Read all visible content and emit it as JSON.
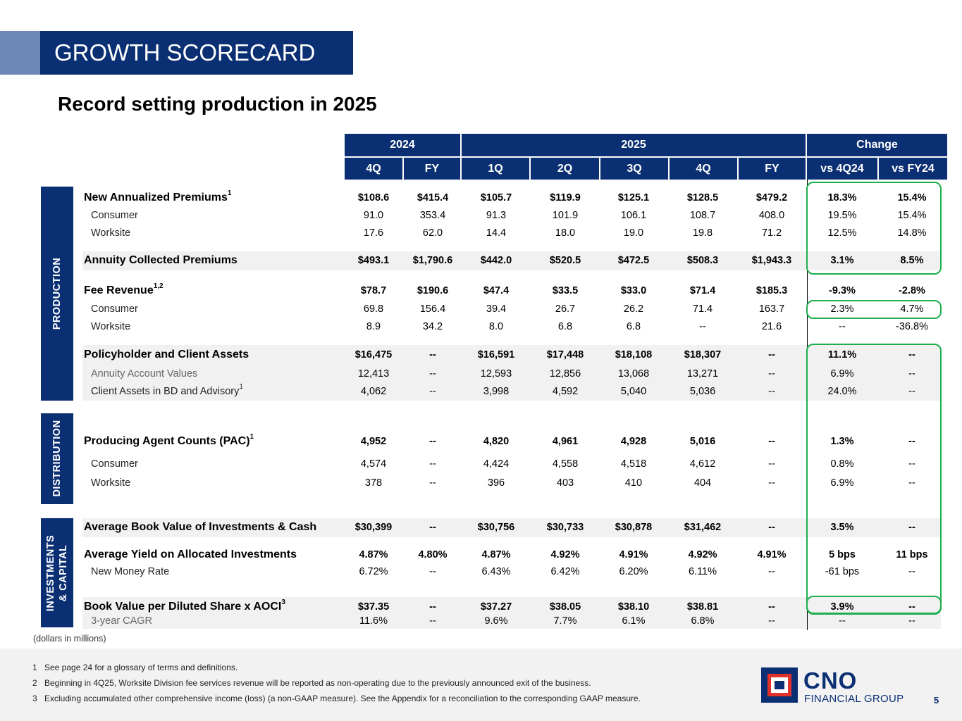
{
  "header": {
    "section_title": "GROWTH SCORECARD",
    "subtitle": "Record setting production in 2025"
  },
  "table": {
    "year_headers": [
      "2024",
      "2025",
      "Change"
    ],
    "column_headers": [
      "4Q",
      "FY",
      "1Q",
      "2Q",
      "3Q",
      "4Q",
      "FY",
      "vs 4Q24",
      "vs FY24"
    ],
    "sections": [
      "PRODUCTION",
      "DISTRIBUTION",
      "INVESTMENTS & CAPITAL"
    ],
    "sections_lines": {
      "investments_line1": "INVESTMENTS",
      "investments_line2": "& CAPITAL"
    },
    "rows": [
      {
        "label": "New Annualized Premiums",
        "sup": "1",
        "values": [
          "$108.6",
          "$415.4",
          "$105.7",
          "$119.9",
          "$125.1",
          "$128.5",
          "$479.2",
          "18.3%",
          "15.4%"
        ]
      },
      {
        "label": "Consumer",
        "sup": "",
        "values": [
          "91.0",
          "353.4",
          "91.3",
          "101.9",
          "106.1",
          "108.7",
          "408.0",
          "19.5%",
          "15.4%"
        ]
      },
      {
        "label": "Worksite",
        "sup": "",
        "values": [
          "17.6",
          "62.0",
          "14.4",
          "18.0",
          "19.0",
          "19.8",
          "71.2",
          "12.5%",
          "14.8%"
        ]
      },
      {
        "label": "Annuity Collected Premiums",
        "sup": "",
        "values": [
          "$493.1",
          "$1,790.6",
          "$442.0",
          "$520.5",
          "$472.5",
          "$508.3",
          "$1,943.3",
          "3.1%",
          "8.5%"
        ]
      },
      {
        "label": "Fee Revenue",
        "sup": "1,2",
        "values": [
          "$78.7",
          "$190.6",
          "$47.4",
          "$33.5",
          "$33.0",
          "$71.4",
          "$185.3",
          "-9.3%",
          "-2.8%"
        ]
      },
      {
        "label": "Consumer",
        "sup": "",
        "values": [
          "69.8",
          "156.4",
          "39.4",
          "26.7",
          "26.2",
          "71.4",
          "163.7",
          "2.3%",
          "4.7%"
        ]
      },
      {
        "label": "Worksite",
        "sup": "",
        "values": [
          "8.9",
          "34.2",
          "8.0",
          "6.8",
          "6.8",
          "--",
          "21.6",
          "--",
          "-36.8%"
        ]
      },
      {
        "label": "Policyholder and Client Assets",
        "sup": "",
        "values": [
          "$16,475",
          "--",
          "$16,591",
          "$17,448",
          "$18,108",
          "$18,307",
          "--",
          "11.1%",
          "--"
        ]
      },
      {
        "label": "Annuity Account Values",
        "sup": "",
        "values": [
          "12,413",
          "--",
          "12,593",
          "12,856",
          "13,068",
          "13,271",
          "--",
          "6.9%",
          "--"
        ]
      },
      {
        "label": "Client Assets in BD and Advisory",
        "sup": "1",
        "values": [
          "4,062",
          "--",
          "3,998",
          "4,592",
          "5,040",
          "5,036",
          "--",
          "24.0%",
          "--"
        ]
      },
      {
        "label": "Producing Agent Counts (PAC)",
        "sup": "1",
        "values": [
          "4,952",
          "--",
          "4,820",
          "4,961",
          "4,928",
          "5,016",
          "--",
          "1.3%",
          "--"
        ]
      },
      {
        "label": "Consumer",
        "sup": "",
        "values": [
          "4,574",
          "--",
          "4,424",
          "4,558",
          "4,518",
          "4,612",
          "--",
          "0.8%",
          "--"
        ]
      },
      {
        "label": "Worksite",
        "sup": "",
        "values": [
          "378",
          "--",
          "396",
          "403",
          "410",
          "404",
          "--",
          "6.9%",
          "--"
        ]
      },
      {
        "label": "Average Book Value of Investments & Cash",
        "sup": "",
        "values": [
          "$30,399",
          "--",
          "$30,756",
          "$30,733",
          "$30,878",
          "$31,462",
          "--",
          "3.5%",
          "--"
        ]
      },
      {
        "label": "Average Yield on Allocated Investments",
        "sup": "",
        "values": [
          "4.87%",
          "4.80%",
          "4.87%",
          "4.92%",
          "4.91%",
          "4.92%",
          "4.91%",
          "5 bps",
          "11 bps"
        ]
      },
      {
        "label": "New Money Rate",
        "sup": "",
        "values": [
          "6.72%",
          "--",
          "6.43%",
          "6.42%",
          "6.20%",
          "6.11%",
          "--",
          "-61 bps",
          "--"
        ]
      },
      {
        "label": "Book Value per Diluted Share x AOCI",
        "sup": "3",
        "values": [
          "$37.35",
          "--",
          "$37.27",
          "$38.05",
          "$38.10",
          "$38.81",
          "--",
          "3.9%",
          "--"
        ]
      },
      {
        "label": "3-year CAGR",
        "sup": "",
        "values": [
          "11.6%",
          "--",
          "9.6%",
          "7.7%",
          "6.1%",
          "6.8%",
          "--",
          "--",
          "--"
        ]
      }
    ]
  },
  "units_note": "(dollars in millions)",
  "footnotes": [
    {
      "num": "1",
      "text": "See page 24 for a glossary of terms and definitions."
    },
    {
      "num": "2",
      "text": "Beginning in 4Q25, Worksite Division fee services revenue will be reported as non-operating due to the previously announced exit of the business."
    },
    {
      "num": "3",
      "text": "Excluding accumulated other comprehensive income (loss) (a non-GAAP measure). See the Appendix for a reconciliation to the corresponding GAAP measure."
    }
  ],
  "logo": {
    "name": "CNO",
    "tagline": "FINANCIAL GROUP"
  },
  "page_number": "5",
  "colors": {
    "navy": "#0a2f73",
    "highlight_green": "#1eae4e",
    "logo_red": "#e0312b"
  }
}
